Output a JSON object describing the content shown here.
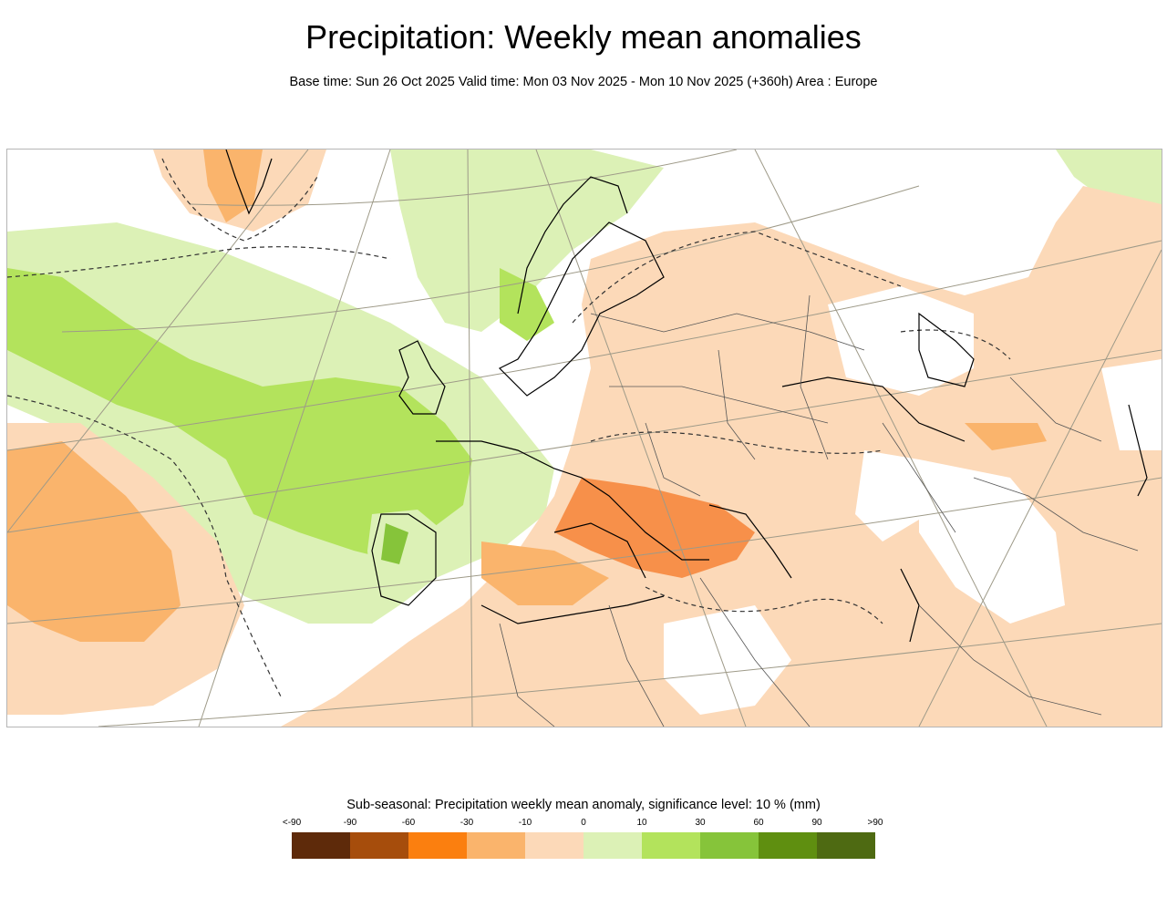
{
  "header": {
    "title": "Precipitation: Weekly mean anomalies",
    "subtitle": "Base time: Sun 26 Oct 2025 Valid time: Mon 03 Nov 2025 - Mon 10 Nov 2025 (+360h) Area : Europe"
  },
  "map": {
    "area": "Europe",
    "colors": {
      "dry_light": "#fcd9b8",
      "dry_mid": "#fab46c",
      "dry_strong": "#f7904a",
      "wet_light": "#dcf1b6",
      "wet_mid": "#b3e35c",
      "wet_strong": "#86c43a",
      "coast": "#000000",
      "grid": "#9e9a88",
      "border": "#555555"
    }
  },
  "legend": {
    "title": "Sub-seasonal: Precipitation weekly mean anomaly, significance level: 10 % (mm)",
    "ticks": [
      "<-90",
      "-90",
      "-60",
      "-30",
      "-10",
      "0",
      "10",
      "30",
      "60",
      "90",
      ">90"
    ],
    "colors": [
      "#5e2a0a",
      "#a64d0c",
      "#fb7f0f",
      "#fab46c",
      "#fcd9b8",
      "#dcf1b6",
      "#b3e35c",
      "#86c43a",
      "#5f8f10",
      "#4e6a12"
    ]
  }
}
